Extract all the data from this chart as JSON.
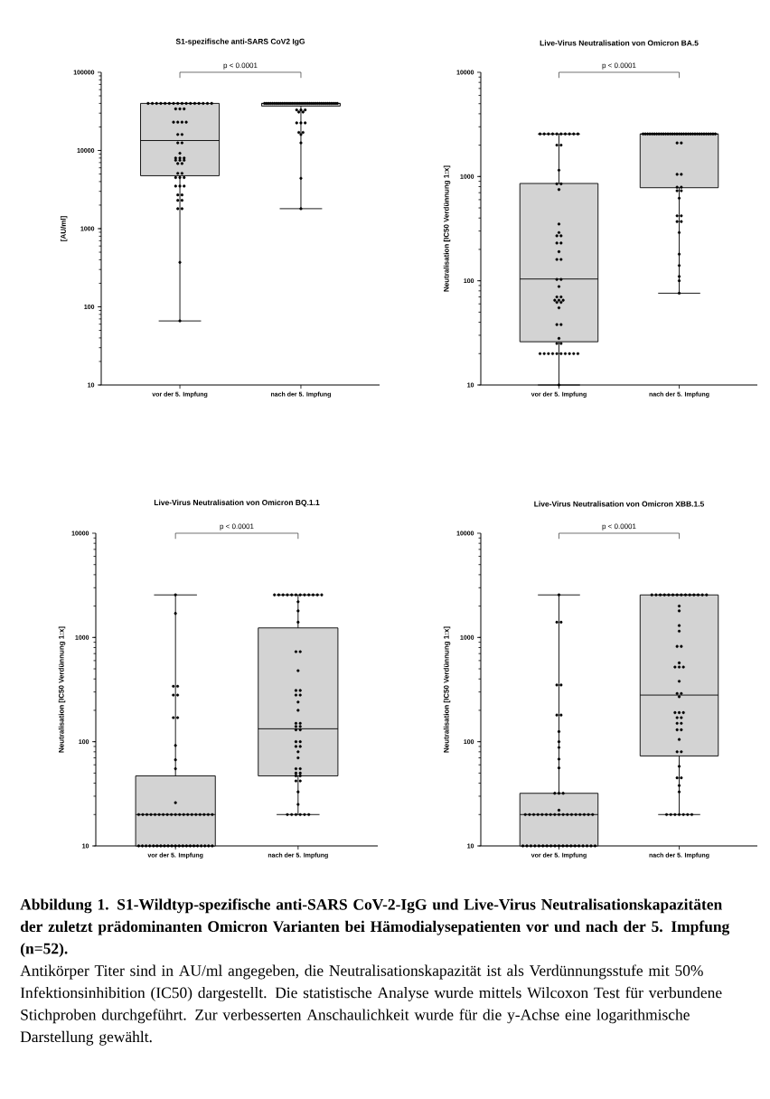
{
  "chart_data": [
    {
      "type": "box",
      "title": "S1-spezifische anti-SARS CoV2 IgG",
      "ylabel": "[AU/ml]",
      "categories": [
        "vor der 5. Impfung",
        "nach der 5. Impfung"
      ],
      "log": true,
      "ylim": [
        10,
        100000
      ],
      "yticks": [
        10,
        100,
        1000,
        10000,
        100000
      ],
      "annotations": [
        "p < 0.0001"
      ],
      "series": [
        {
          "type": "box",
          "color": "#d3d3d3",
          "boxes": [
            {
              "low": 66,
              "q1": 4750,
              "median": 13400,
              "q3": 40000,
              "high": 40000
            },
            {
              "low": 1800,
              "q1": 37000,
              "median": 40000,
              "q3": 40000,
              "high": 40000
            }
          ]
        },
        {
          "type": "scatter",
          "color": "#000000",
          "marker": "circle",
          "x": [
            "vor der 5. Impfung",
            "vor der 5. Impfung",
            "vor der 5. Impfung",
            "vor der 5. Impfung",
            "vor der 5. Impfung",
            "vor der 5. Impfung",
            "vor der 5. Impfung",
            "vor der 5. Impfung",
            "vor der 5. Impfung",
            "vor der 5. Impfung",
            "vor der 5. Impfung",
            "vor der 5. Impfung",
            "vor der 5. Impfung",
            "vor der 5. Impfung",
            "vor der 5. Impfung",
            "vor der 5. Impfung",
            "vor der 5. Impfung",
            "vor der 5. Impfung",
            "vor der 5. Impfung",
            "vor der 5. Impfung",
            "vor der 5. Impfung",
            "vor der 5. Impfung",
            "vor der 5. Impfung",
            "vor der 5. Impfung",
            "vor der 5. Impfung",
            "vor der 5. Impfung",
            "vor der 5. Impfung",
            "vor der 5. Impfung",
            "vor der 5. Impfung",
            "vor der 5. Impfung",
            "vor der 5. Impfung",
            "vor der 5. Impfung",
            "vor der 5. Impfung",
            "vor der 5. Impfung",
            "vor der 5. Impfung",
            "vor der 5. Impfung",
            "vor der 5. Impfung",
            "vor der 5. Impfung",
            "vor der 5. Impfung",
            "vor der 5. Impfung",
            "vor der 5. Impfung",
            "vor der 5. Impfung",
            "vor der 5. Impfung",
            "vor der 5. Impfung",
            "vor der 5. Impfung",
            "vor der 5. Impfung",
            "vor der 5. Impfung",
            "vor der 5. Impfung",
            "vor der 5. Impfung",
            "vor der 5. Impfung",
            "vor der 5. Impfung",
            "vor der 5. Impfung"
          ],
          "values": [
            40000,
            40000,
            40000,
            40000,
            40000,
            40000,
            40000,
            40000,
            40000,
            40000,
            40000,
            40000,
            40000,
            40000,
            40000,
            40000,
            34000,
            34000,
            34000,
            23000,
            23000,
            23000,
            23000,
            16000,
            16000,
            12500,
            12500,
            9200,
            8000,
            8000,
            8000,
            7500,
            7500,
            7500,
            6800,
            6800,
            5100,
            5100,
            4500,
            4500,
            4500,
            3500,
            3500,
            3500,
            2700,
            2700,
            2300,
            2300,
            1800,
            1800,
            370,
            66
          ]
        },
        {
          "type": "scatter",
          "color": "#000000",
          "marker": "circle",
          "x": [
            "nach der 5. Impfung",
            "nach der 5. Impfung",
            "nach der 5. Impfung",
            "nach der 5. Impfung",
            "nach der 5. Impfung",
            "nach der 5. Impfung",
            "nach der 5. Impfung",
            "nach der 5. Impfung",
            "nach der 5. Impfung",
            "nach der 5. Impfung",
            "nach der 5. Impfung",
            "nach der 5. Impfung",
            "nach der 5. Impfung",
            "nach der 5. Impfung",
            "nach der 5. Impfung",
            "nach der 5. Impfung",
            "nach der 5. Impfung",
            "nach der 5. Impfung",
            "nach der 5. Impfung",
            "nach der 5. Impfung",
            "nach der 5. Impfung",
            "nach der 5. Impfung",
            "nach der 5. Impfung",
            "nach der 5. Impfung",
            "nach der 5. Impfung",
            "nach der 5. Impfung",
            "nach der 5. Impfung",
            "nach der 5. Impfung",
            "nach der 5. Impfung",
            "nach der 5. Impfung",
            "nach der 5. Impfung",
            "nach der 5. Impfung",
            "nach der 5. Impfung",
            "nach der 5. Impfung",
            "nach der 5. Impfung",
            "nach der 5. Impfung",
            "nach der 5. Impfung",
            "nach der 5. Impfung",
            "nach der 5. Impfung",
            "nach der 5. Impfung",
            "nach der 5. Impfung",
            "nach der 5. Impfung",
            "nach der 5. Impfung",
            "nach der 5. Impfung",
            "nach der 5. Impfung",
            "nach der 5. Impfung",
            "nach der 5. Impfung",
            "nach der 5. Impfung",
            "nach der 5. Impfung",
            "nach der 5. Impfung",
            "nach der 5. Impfung",
            "nach der 5. Impfung"
          ],
          "values": [
            40000,
            40000,
            40000,
            40000,
            40000,
            40000,
            40000,
            40000,
            40000,
            40000,
            40000,
            40000,
            40000,
            40000,
            40000,
            40000,
            40000,
            40000,
            40000,
            40000,
            40000,
            40000,
            40000,
            40000,
            40000,
            40000,
            40000,
            40000,
            40000,
            40000,
            40000,
            40000,
            40000,
            40000,
            40000,
            40000,
            40000,
            40000,
            33000,
            33000,
            33000,
            31000,
            31000,
            22500,
            22500,
            22500,
            17000,
            17000,
            16000,
            12500,
            4400,
            1800
          ]
        }
      ]
    },
    {
      "type": "box",
      "title": "Live-Virus Neutralisation von Omicron BA.5",
      "ylabel": "Neutralisation [IC50 Verdünnung 1:x]",
      "categories": [
        "vor der 5. Impfung",
        "nach der 5. Impfung"
      ],
      "log": true,
      "ylim": [
        10,
        10000
      ],
      "yticks": [
        10,
        100,
        1000,
        10000
      ],
      "annotations": [
        "p < 0.0001"
      ],
      "series": [
        {
          "type": "box",
          "color": "#d3d3d3",
          "boxes": [
            {
              "low": 10,
              "q1": 26,
              "median": 104,
              "q3": 858,
              "high": 2560
            },
            {
              "low": 76,
              "q1": 781,
              "median": 2560,
              "q3": 2560,
              "high": 2560
            }
          ]
        },
        {
          "type": "scatter",
          "color": "#000000",
          "marker": "circle",
          "x": [
            "vor der 5. Impfung",
            "vor der 5. Impfung",
            "vor der 5. Impfung",
            "vor der 5. Impfung",
            "vor der 5. Impfung",
            "vor der 5. Impfung",
            "vor der 5. Impfung",
            "vor der 5. Impfung",
            "vor der 5. Impfung",
            "vor der 5. Impfung",
            "vor der 5. Impfung",
            "vor der 5. Impfung",
            "vor der 5. Impfung",
            "vor der 5. Impfung",
            "vor der 5. Impfung",
            "vor der 5. Impfung",
            "vor der 5. Impfung",
            "vor der 5. Impfung",
            "vor der 5. Impfung",
            "vor der 5. Impfung",
            "vor der 5. Impfung",
            "vor der 5. Impfung",
            "vor der 5. Impfung",
            "vor der 5. Impfung",
            "vor der 5. Impfung",
            "vor der 5. Impfung",
            "vor der 5. Impfung",
            "vor der 5. Impfung",
            "vor der 5. Impfung",
            "vor der 5. Impfung",
            "vor der 5. Impfung",
            "vor der 5. Impfung",
            "vor der 5. Impfung",
            "vor der 5. Impfung",
            "vor der 5. Impfung",
            "vor der 5. Impfung",
            "vor der 5. Impfung",
            "vor der 5. Impfung",
            "vor der 5. Impfung",
            "vor der 5. Impfung",
            "vor der 5. Impfung",
            "vor der 5. Impfung",
            "vor der 5. Impfung",
            "vor der 5. Impfung",
            "vor der 5. Impfung",
            "vor der 5. Impfung",
            "vor der 5. Impfung",
            "vor der 5. Impfung",
            "vor der 5. Impfung",
            "vor der 5. Impfung",
            "vor der 5. Impfung",
            "vor der 5. Impfung"
          ],
          "values": [
            2560,
            2560,
            2560,
            2560,
            2560,
            2560,
            2560,
            2560,
            2560,
            2560,
            2000,
            2000,
            1150,
            850,
            850,
            750,
            350,
            290,
            270,
            270,
            230,
            230,
            190,
            160,
            160,
            103,
            103,
            88,
            70,
            70,
            65,
            65,
            65,
            62,
            62,
            55,
            38,
            38,
            28,
            25,
            25,
            20,
            20,
            20,
            20,
            20,
            20,
            20,
            20,
            20,
            20,
            10
          ]
        },
        {
          "type": "scatter",
          "color": "#000000",
          "marker": "circle",
          "x": [
            "nach der 5. Impfung",
            "nach der 5. Impfung",
            "nach der 5. Impfung",
            "nach der 5. Impfung",
            "nach der 5. Impfung",
            "nach der 5. Impfung",
            "nach der 5. Impfung",
            "nach der 5. Impfung",
            "nach der 5. Impfung",
            "nach der 5. Impfung",
            "nach der 5. Impfung",
            "nach der 5. Impfung",
            "nach der 5. Impfung",
            "nach der 5. Impfung",
            "nach der 5. Impfung",
            "nach der 5. Impfung",
            "nach der 5. Impfung",
            "nach der 5. Impfung",
            "nach der 5. Impfung",
            "nach der 5. Impfung",
            "nach der 5. Impfung",
            "nach der 5. Impfung",
            "nach der 5. Impfung",
            "nach der 5. Impfung",
            "nach der 5. Impfung",
            "nach der 5. Impfung",
            "nach der 5. Impfung",
            "nach der 5. Impfung",
            "nach der 5. Impfung",
            "nach der 5. Impfung",
            "nach der 5. Impfung",
            "nach der 5. Impfung",
            "nach der 5. Impfung",
            "nach der 5. Impfung",
            "nach der 5. Impfung",
            "nach der 5. Impfung",
            "nach der 5. Impfung",
            "nach der 5. Impfung",
            "nach der 5. Impfung",
            "nach der 5. Impfung",
            "nach der 5. Impfung",
            "nach der 5. Impfung",
            "nach der 5. Impfung",
            "nach der 5. Impfung",
            "nach der 5. Impfung",
            "nach der 5. Impfung",
            "nach der 5. Impfung",
            "nach der 5. Impfung",
            "nach der 5. Impfung",
            "nach der 5. Impfung",
            "nach der 5. Impfung",
            "nach der 5. Impfung"
          ],
          "values": [
            2560,
            2560,
            2560,
            2560,
            2560,
            2560,
            2560,
            2560,
            2560,
            2560,
            2560,
            2560,
            2560,
            2560,
            2560,
            2560,
            2560,
            2560,
            2560,
            2560,
            2560,
            2560,
            2560,
            2560,
            2560,
            2560,
            2560,
            2560,
            2560,
            2560,
            2560,
            2560,
            2560,
            2100,
            2100,
            1050,
            1050,
            790,
            790,
            730,
            730,
            620,
            420,
            420,
            370,
            370,
            290,
            180,
            140,
            110,
            100,
            76
          ]
        }
      ]
    },
    {
      "type": "box",
      "title": "Live-Virus Neutralisation von Omicron BQ.1.1",
      "ylabel": "Neutralisation [IC50 Verdünnung 1:x]",
      "categories": [
        "vor der 5. Impfung",
        "nach der 5. Impfung"
      ],
      "log": true,
      "ylim": [
        10,
        10000
      ],
      "yticks": [
        10,
        100,
        1000,
        10000
      ],
      "annotations": [
        "p < 0.0001"
      ],
      "series": [
        {
          "type": "box",
          "color": "#d3d3d3",
          "boxes": [
            {
              "low": 10,
              "q1": 10,
              "median": 20,
              "q3": 47,
              "high": 2560
            },
            {
              "low": 20,
              "q1": 47,
              "median": 133,
              "q3": 1235,
              "high": 2560
            }
          ]
        },
        {
          "type": "scatter",
          "color": "#000000",
          "marker": "circle",
          "x": [
            "vor der 5. Impfung",
            "vor der 5. Impfung",
            "vor der 5. Impfung",
            "vor der 5. Impfung",
            "vor der 5. Impfung",
            "vor der 5. Impfung",
            "vor der 5. Impfung",
            "vor der 5. Impfung",
            "vor der 5. Impfung",
            "vor der 5. Impfung",
            "vor der 5. Impfung",
            "vor der 5. Impfung",
            "vor der 5. Impfung",
            "vor der 5. Impfung",
            "vor der 5. Impfung",
            "vor der 5. Impfung",
            "vor der 5. Impfung",
            "vor der 5. Impfung",
            "vor der 5. Impfung",
            "vor der 5. Impfung",
            "vor der 5. Impfung",
            "vor der 5. Impfung",
            "vor der 5. Impfung",
            "vor der 5. Impfung",
            "vor der 5. Impfung",
            "vor der 5. Impfung",
            "vor der 5. Impfung",
            "vor der 5. Impfung",
            "vor der 5. Impfung",
            "vor der 5. Impfung",
            "vor der 5. Impfung",
            "vor der 5. Impfung",
            "vor der 5. Impfung",
            "vor der 5. Impfung",
            "vor der 5. Impfung",
            "vor der 5. Impfung",
            "vor der 5. Impfung",
            "vor der 5. Impfung",
            "vor der 5. Impfung",
            "vor der 5. Impfung",
            "vor der 5. Impfung",
            "vor der 5. Impfung",
            "vor der 5. Impfung",
            "vor der 5. Impfung",
            "vor der 5. Impfung",
            "vor der 5. Impfung",
            "vor der 5. Impfung",
            "vor der 5. Impfung",
            "vor der 5. Impfung",
            "vor der 5. Impfung",
            "vor der 5. Impfung",
            "vor der 5. Impfung"
          ],
          "values": [
            2560,
            1700,
            340,
            340,
            280,
            280,
            170,
            170,
            92,
            67,
            55,
            26,
            20,
            20,
            20,
            20,
            20,
            20,
            20,
            20,
            20,
            20,
            20,
            20,
            20,
            20,
            20,
            20,
            20,
            20,
            20,
            10,
            10,
            10,
            10,
            10,
            10,
            10,
            10,
            10,
            10,
            10,
            10,
            10,
            10,
            10,
            10,
            10,
            10,
            10,
            10,
            10
          ]
        },
        {
          "type": "scatter",
          "color": "#000000",
          "marker": "circle",
          "x": [
            "nach der 5. Impfung",
            "nach der 5. Impfung",
            "nach der 5. Impfung",
            "nach der 5. Impfung",
            "nach der 5. Impfung",
            "nach der 5. Impfung",
            "nach der 5. Impfung",
            "nach der 5. Impfung",
            "nach der 5. Impfung",
            "nach der 5. Impfung",
            "nach der 5. Impfung",
            "nach der 5. Impfung",
            "nach der 5. Impfung",
            "nach der 5. Impfung",
            "nach der 5. Impfung",
            "nach der 5. Impfung",
            "nach der 5. Impfung",
            "nach der 5. Impfung",
            "nach der 5. Impfung",
            "nach der 5. Impfung",
            "nach der 5. Impfung",
            "nach der 5. Impfung",
            "nach der 5. Impfung",
            "nach der 5. Impfung",
            "nach der 5. Impfung",
            "nach der 5. Impfung",
            "nach der 5. Impfung",
            "nach der 5. Impfung",
            "nach der 5. Impfung",
            "nach der 5. Impfung",
            "nach der 5. Impfung",
            "nach der 5. Impfung",
            "nach der 5. Impfung",
            "nach der 5. Impfung",
            "nach der 5. Impfung",
            "nach der 5. Impfung",
            "nach der 5. Impfung",
            "nach der 5. Impfung",
            "nach der 5. Impfung",
            "nach der 5. Impfung",
            "nach der 5. Impfung",
            "nach der 5. Impfung",
            "nach der 5. Impfung",
            "nach der 5. Impfung",
            "nach der 5. Impfung",
            "nach der 5. Impfung",
            "nach der 5. Impfung",
            "nach der 5. Impfung",
            "nach der 5. Impfung",
            "nach der 5. Impfung",
            "nach der 5. Impfung",
            "nach der 5. Impfung"
          ],
          "values": [
            2560,
            2560,
            2560,
            2560,
            2560,
            2560,
            2560,
            2560,
            2560,
            2560,
            2560,
            2560,
            2200,
            1800,
            1400,
            730,
            730,
            480,
            310,
            310,
            280,
            280,
            240,
            200,
            150,
            150,
            140,
            140,
            130,
            130,
            100,
            100,
            90,
            90,
            80,
            70,
            55,
            55,
            50,
            50,
            47,
            47,
            42,
            42,
            33,
            25,
            20,
            20,
            20,
            20,
            20,
            20
          ]
        }
      ]
    },
    {
      "type": "box",
      "title": "Live-Virus Neutralisation von Omicron XBB.1.5",
      "ylabel": "Neutralisation [IC50 Verdünnung 1:x]",
      "categories": [
        "vor der 5. Impfung",
        "nach der 5. Impfung"
      ],
      "log": true,
      "ylim": [
        10,
        10000
      ],
      "yticks": [
        10,
        100,
        1000,
        10000
      ],
      "annotations": [
        "p < 0.0001"
      ],
      "series": [
        {
          "type": "box",
          "color": "#d3d3d3",
          "boxes": [
            {
              "low": 10,
              "q1": 10,
              "median": 20,
              "q3": 32,
              "high": 2560
            },
            {
              "low": 20,
              "q1": 73,
              "median": 280,
              "q3": 2560,
              "high": 2560
            }
          ]
        },
        {
          "type": "scatter",
          "color": "#000000",
          "marker": "circle",
          "x": [
            "vor der 5. Impfung",
            "vor der 5. Impfung",
            "vor der 5. Impfung",
            "vor der 5. Impfung",
            "vor der 5. Impfung",
            "vor der 5. Impfung",
            "vor der 5. Impfung",
            "vor der 5. Impfung",
            "vor der 5. Impfung",
            "vor der 5. Impfung",
            "vor der 5. Impfung",
            "vor der 5. Impfung",
            "vor der 5. Impfung",
            "vor der 5. Impfung",
            "vor der 5. Impfung",
            "vor der 5. Impfung",
            "vor der 5. Impfung",
            "vor der 5. Impfung",
            "vor der 5. Impfung",
            "vor der 5. Impfung",
            "vor der 5. Impfung",
            "vor der 5. Impfung",
            "vor der 5. Impfung",
            "vor der 5. Impfung",
            "vor der 5. Impfung",
            "vor der 5. Impfung",
            "vor der 5. Impfung",
            "vor der 5. Impfung",
            "vor der 5. Impfung",
            "vor der 5. Impfung",
            "vor der 5. Impfung",
            "vor der 5. Impfung",
            "vor der 5. Impfung",
            "vor der 5. Impfung",
            "vor der 5. Impfung",
            "vor der 5. Impfung",
            "vor der 5. Impfung",
            "vor der 5. Impfung",
            "vor der 5. Impfung",
            "vor der 5. Impfung",
            "vor der 5. Impfung",
            "vor der 5. Impfung",
            "vor der 5. Impfung",
            "vor der 5. Impfung",
            "vor der 5. Impfung",
            "vor der 5. Impfung",
            "vor der 5. Impfung",
            "vor der 5. Impfung",
            "vor der 5. Impfung",
            "vor der 5. Impfung",
            "vor der 5. Impfung",
            "vor der 5. Impfung"
          ],
          "values": [
            2560,
            1400,
            1400,
            350,
            350,
            180,
            180,
            125,
            100,
            88,
            68,
            56,
            32,
            32,
            32,
            22,
            20,
            20,
            20,
            20,
            20,
            20,
            20,
            20,
            20,
            20,
            20,
            20,
            20,
            20,
            20,
            20,
            20,
            10,
            10,
            10,
            10,
            10,
            10,
            10,
            10,
            10,
            10,
            10,
            10,
            10,
            10,
            10,
            10,
            10,
            10,
            10
          ]
        },
        {
          "type": "scatter",
          "color": "#000000",
          "marker": "circle",
          "x": [
            "nach der 5. Impfung",
            "nach der 5. Impfung",
            "nach der 5. Impfung",
            "nach der 5. Impfung",
            "nach der 5. Impfung",
            "nach der 5. Impfung",
            "nach der 5. Impfung",
            "nach der 5. Impfung",
            "nach der 5. Impfung",
            "nach der 5. Impfung",
            "nach der 5. Impfung",
            "nach der 5. Impfung",
            "nach der 5. Impfung",
            "nach der 5. Impfung",
            "nach der 5. Impfung",
            "nach der 5. Impfung",
            "nach der 5. Impfung",
            "nach der 5. Impfung",
            "nach der 5. Impfung",
            "nach der 5. Impfung",
            "nach der 5. Impfung",
            "nach der 5. Impfung",
            "nach der 5. Impfung",
            "nach der 5. Impfung",
            "nach der 5. Impfung",
            "nach der 5. Impfung",
            "nach der 5. Impfung",
            "nach der 5. Impfung",
            "nach der 5. Impfung",
            "nach der 5. Impfung",
            "nach der 5. Impfung",
            "nach der 5. Impfung",
            "nach der 5. Impfung",
            "nach der 5. Impfung",
            "nach der 5. Impfung",
            "nach der 5. Impfung",
            "nach der 5. Impfung",
            "nach der 5. Impfung",
            "nach der 5. Impfung",
            "nach der 5. Impfung",
            "nach der 5. Impfung",
            "nach der 5. Impfung",
            "nach der 5. Impfung",
            "nach der 5. Impfung",
            "nach der 5. Impfung",
            "nach der 5. Impfung",
            "nach der 5. Impfung",
            "nach der 5. Impfung",
            "nach der 5. Impfung",
            "nach der 5. Impfung",
            "nach der 5. Impfung",
            "nach der 5. Impfung"
          ],
          "values": [
            2560,
            2560,
            2560,
            2560,
            2560,
            2560,
            2560,
            2560,
            2560,
            2560,
            2560,
            2560,
            2560,
            2560,
            2000,
            1800,
            1300,
            1150,
            820,
            820,
            570,
            520,
            520,
            520,
            380,
            290,
            290,
            270,
            190,
            190,
            190,
            170,
            170,
            150,
            150,
            130,
            130,
            105,
            80,
            80,
            58,
            45,
            45,
            38,
            33,
            20,
            20,
            20,
            20,
            20,
            20,
            20
          ]
        }
      ]
    },
    {
      "type": "other",
      "title": "Abbildung 1. S1-Wildtyp-spezifische anti-SARS CoV-2-IgG und Live-Virus Neutralisationskapazitäten der zuletzt prädominanten Omicron Varianten bei Hämodialysepatienten vor und nach der 5. Impfung (n=52).",
      "annotations": [
        "Antikörper Titer sind in AU/ml angegeben, die Neutralisationskapazität ist als Verdünnungsstufe mit 50% Infektionsinhibition (IC50) dargestellt. Die statistische Analyse wurde mittels Wilcoxon Test für verbundene Stichproben durchgeführt. Zur verbesserten Anschaulichkeit wurde für die y-Achse eine logarithmische Darstellung gewählt."
      ]
    }
  ]
}
